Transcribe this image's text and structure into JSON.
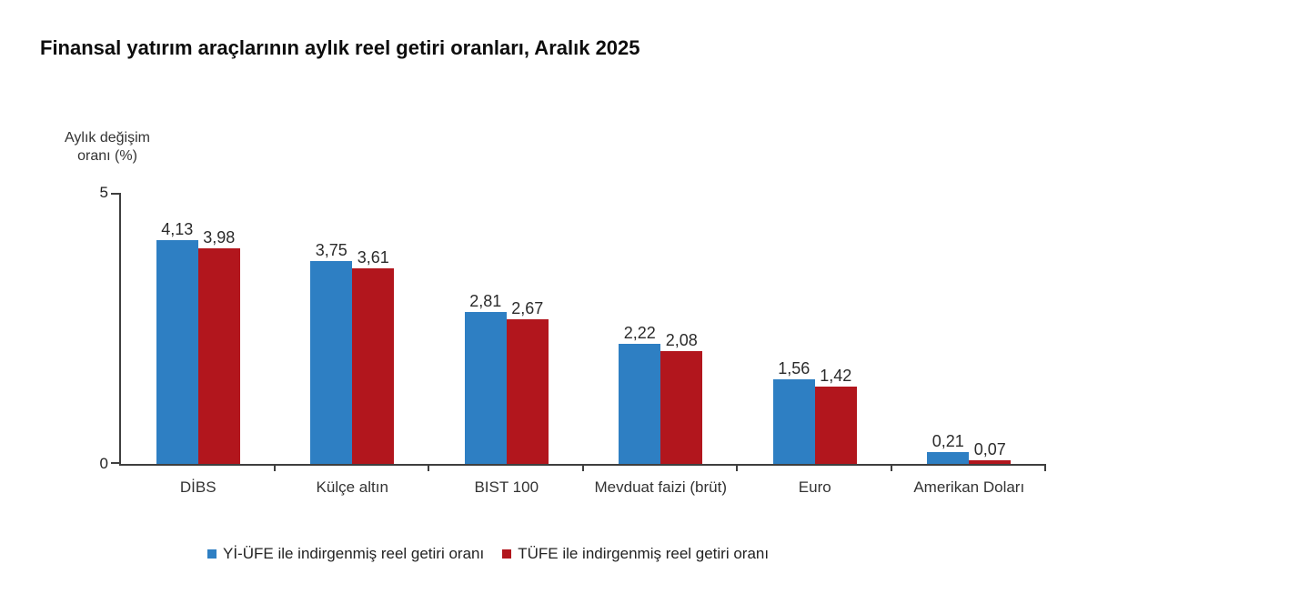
{
  "title": "Finansal yatırım araçlarının aylık reel getiri oranları, Aralık 2025",
  "chart_data": {
    "type": "bar",
    "title": "Finansal yatırım araçlarının aylık reel getiri oranları, Aralık 2025",
    "ylabel": "Aylık değişim oranı (%)",
    "xlabel": "",
    "ylim": [
      0,
      5
    ],
    "yticks": [
      {
        "value": 5,
        "label": "5"
      },
      {
        "value": 0,
        "label": "0"
      }
    ],
    "grid": false,
    "legend_position": "bottom",
    "decimal_separator": ",",
    "categories": [
      "DİBS",
      "Külçe altın",
      "BIST 100",
      "Mevduat faizi (brüt)",
      "Euro",
      "Amerikan Doları"
    ],
    "series": [
      {
        "name": "Yİ-ÜFE ile indirgenmiş reel getiri oranı",
        "color": "#2e7fc3",
        "values": [
          4.13,
          3.75,
          2.81,
          2.22,
          1.56,
          0.21
        ],
        "value_labels": [
          "4,13",
          "3,75",
          "2,81",
          "2,22",
          "1,56",
          "0,21"
        ]
      },
      {
        "name": "TÜFE ile indirgenmiş reel getiri oranı",
        "color": "#b2161d",
        "values": [
          3.98,
          3.61,
          2.67,
          2.08,
          1.42,
          0.07
        ],
        "value_labels": [
          "3,98",
          "3,61",
          "2,67",
          "2,08",
          "1,42",
          "0,07"
        ]
      }
    ]
  },
  "colors": {
    "background": "#ffffff",
    "axis": "#3f3f3f",
    "text": "#2b2b2b",
    "series_blue": "#2e7fc3",
    "series_red": "#b2161d"
  }
}
